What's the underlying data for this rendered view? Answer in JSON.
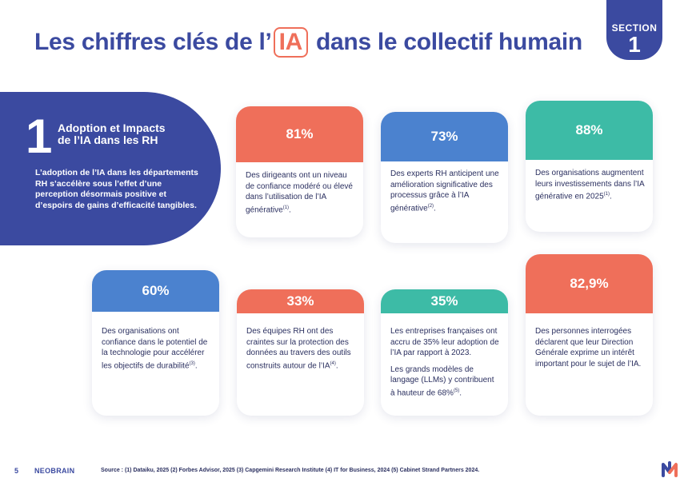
{
  "title": {
    "before": "Les chiffres clés de l’",
    "highlight": "IA",
    "after": " dans le collectif humain"
  },
  "section": {
    "label": "SECTION",
    "number": "1"
  },
  "intro": {
    "number": "1",
    "heading": "Adoption et Impacts de l’IA dans les RH",
    "description": "L’adoption de l’IA dans les départements RH s’accélère sous l’effet d’une perception désormais positive et d’espoirs de gains d’efficacité tangibles."
  },
  "cards": [
    {
      "value": "81%",
      "text": "Des dirigeants ont un niveau de confiance modéré ou élevé dans l’utilisation de l’IA générative",
      "ref": "(1)",
      "color": "#ef6f5a"
    },
    {
      "value": "73%",
      "text": "Des experts RH anticipent une amélioration significative des processus grâce à l’IA générative",
      "ref": "(2)",
      "color": "#4b82cf"
    },
    {
      "value": "88%",
      "text": "Des organisations augmentent leurs investissements dans l’IA générative en 2025",
      "ref": "(1)",
      "color": "#3dbba6"
    },
    {
      "value": "60%",
      "text": "Des organisations ont confiance dans le potentiel de la technologie pour accélérer les objectifs de durabilité",
      "ref": "(3)",
      "color": "#4b82cf"
    },
    {
      "value": "33%",
      "text": "Des équipes RH ont des craintes sur la protection des données au travers des outils construits autour de l’IA",
      "ref": "(4)",
      "color": "#ef6f5a"
    },
    {
      "value": "35%",
      "text": "Les entreprises françaises ont accru de 35% leur adoption de l’IA par rapport à 2023.",
      "text2": "Les grands modèles de langage (LLMs) y contribuent à hauteur de 68%",
      "ref": "(5)",
      "color": "#3dbba6"
    },
    {
      "value": "82,9%",
      "text": "Des personnes interrogées déclarent que leur Direction Générale exprime un intérêt important pour le sujet de l’IA.",
      "color": "#ef6f5a"
    }
  ],
  "footer": {
    "page": "5",
    "brand": "NEOBRAIN",
    "source": "Source : (1) Dataiku, 2025 (2) Forbes Advisor, 2025 (3) Capgemini Research Institute (4) IT for Business, 2024 (5) Cabinet Strand Partners 2024."
  },
  "icons": {
    "logo": "neobrain-logo-icon"
  }
}
